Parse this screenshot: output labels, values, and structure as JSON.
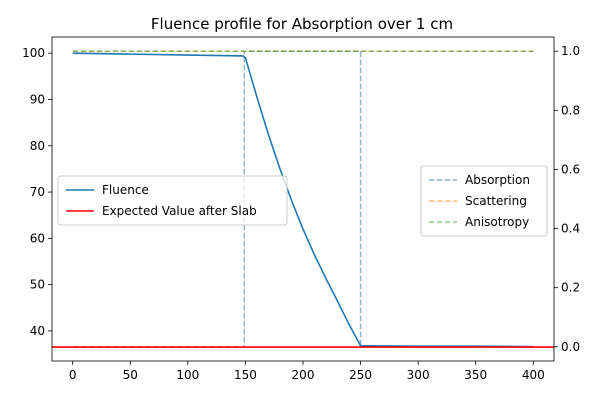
{
  "chart_data": {
    "type": "line",
    "title": "Fluence profile for Absorption over 1 cm",
    "xlabel": "",
    "ylabel": "",
    "xlim": [
      -18,
      418
    ],
    "ylim": [
      33.5,
      103.5
    ],
    "ylim_right": [
      -0.048,
      1.048
    ],
    "x_ticks": [
      0,
      50,
      100,
      150,
      200,
      250,
      300,
      350,
      400
    ],
    "y_ticks": [
      40,
      50,
      60,
      70,
      80,
      90,
      100
    ],
    "y_ticks_right": [
      0.0,
      0.2,
      0.4,
      0.6,
      0.8,
      1.0
    ],
    "grid": false,
    "legend_left": {
      "placement": "center-left",
      "entries": [
        "Fluence",
        "Expected Value after Slab"
      ]
    },
    "legend_right": {
      "placement": "center-right",
      "entries": [
        "Absorption",
        "Scattering",
        "Anisotropy"
      ]
    },
    "series": [
      {
        "name": "Fluence",
        "axis": "left",
        "color": "#1f77b4",
        "style": "solid",
        "x": [
          0,
          50,
          100,
          148,
          150,
          160,
          170,
          180,
          190,
          200,
          210,
          220,
          230,
          240,
          250,
          300,
          350,
          400
        ],
        "y": [
          100,
          99.8,
          99.6,
          99.4,
          99.0,
          90.5,
          82.4,
          75.0,
          68.2,
          62.0,
          56.4,
          51.3,
          46.4,
          41.4,
          36.8,
          36.7,
          36.7,
          36.6
        ]
      },
      {
        "name": "Expected Value after Slab",
        "axis": "left",
        "color": "#ff0000",
        "style": "solid",
        "x": [
          -18,
          418
        ],
        "y": [
          36.5,
          36.5
        ]
      },
      {
        "name": "Absorption",
        "axis": "right",
        "color": "#1f77b4",
        "style": "dashed",
        "x": [
          0,
          149,
          149,
          250,
          250,
          400
        ],
        "y": [
          0,
          0,
          1,
          1,
          0,
          0
        ]
      },
      {
        "name": "Scattering",
        "axis": "right",
        "color": "#ff7f0e",
        "style": "dashed",
        "x": [
          0,
          400
        ],
        "y": [
          1,
          1
        ]
      },
      {
        "name": "Anisotropy",
        "axis": "right",
        "color": "#2ca02c",
        "style": "dashed",
        "x": [
          0,
          400
        ],
        "y": [
          1,
          1
        ]
      }
    ]
  }
}
